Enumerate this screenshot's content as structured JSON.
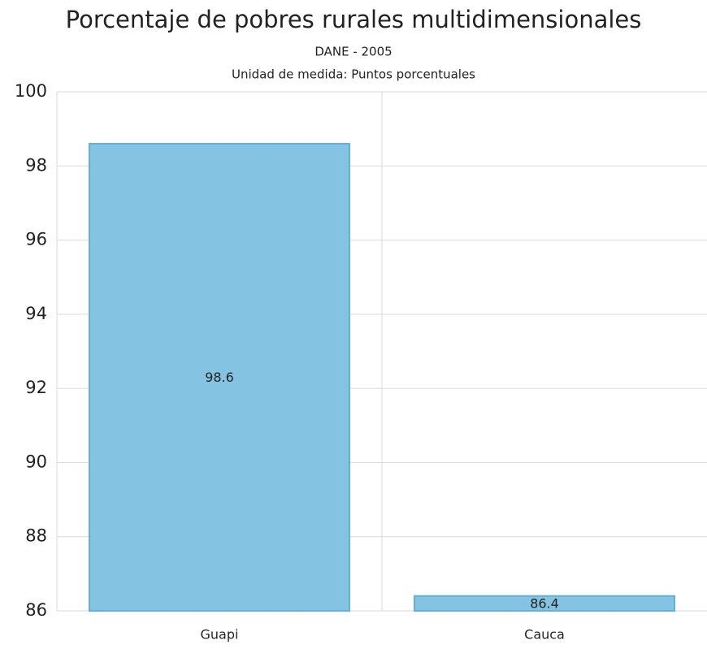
{
  "chart_data": {
    "type": "bar",
    "title": "Porcentaje de pobres rurales multidimensionales",
    "subtitle": "DANE - 2005",
    "unit_label": "Unidad de medida: Puntos porcentuales",
    "categories": [
      "Guapi",
      "Cauca"
    ],
    "values": [
      98.6,
      86.4
    ],
    "color": "#85c3e3",
    "ylim": [
      86,
      100
    ],
    "yticks": [
      86,
      88,
      90,
      92,
      94,
      96,
      98,
      100
    ],
    "grid": true,
    "data_labels": true
  }
}
